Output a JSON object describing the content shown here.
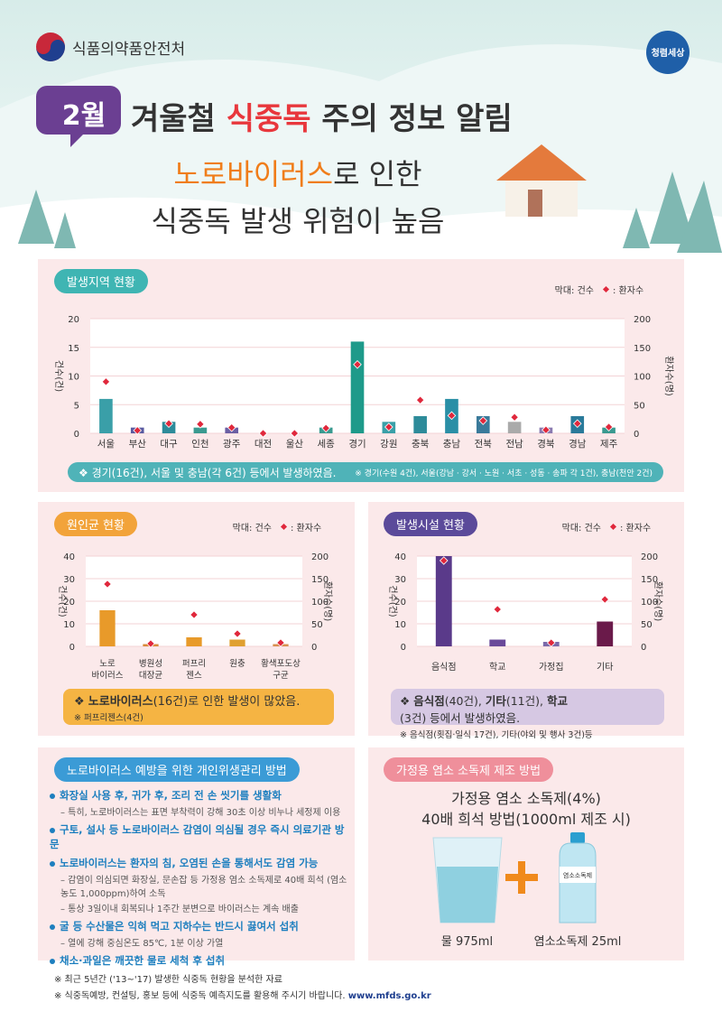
{
  "header": {
    "organization": "식품의약품안전처",
    "emblem_text": "청렴세상",
    "month": "2월",
    "title_parts": [
      "겨울철 ",
      "식중독",
      " 주의 정보 알림"
    ],
    "subtitle_parts": [
      "노로바이러스",
      "로 인한"
    ],
    "subtitle_line2": "식중독 발생 위험이 높음"
  },
  "chart_data": [
    {
      "type": "bar",
      "title": "발생지역 현황",
      "ylabel": "건수(건)",
      "y2label": "환자수(명)",
      "categories": [
        "서울",
        "부산",
        "대구",
        "인천",
        "광주",
        "대전",
        "울산",
        "세종",
        "경기",
        "강원",
        "충북",
        "충남",
        "전북",
        "전남",
        "경북",
        "경남",
        "제주"
      ],
      "series": [
        {
          "name": "막대: 건수",
          "values": [
            6,
            1,
            2,
            1,
            1,
            0,
            0,
            1,
            16,
            2,
            3,
            6,
            3,
            2,
            1,
            3,
            1
          ],
          "colors": [
            "#3a9fa8",
            "#5a5aa0",
            "#2d8b9a",
            "#3a9a90",
            "#6b5fa3",
            "#999999",
            "#999999",
            "#3a9a90",
            "#1e9a8a",
            "#3aa0a8",
            "#2d8b9a",
            "#2a8fa6",
            "#3a7a9a",
            "#aaaaaa",
            "#8a7ab0",
            "#2a7a9a",
            "#3a9a90"
          ]
        },
        {
          "name": ": 환자수",
          "type": "scatter",
          "axis": "y2",
          "color": "#e0283c",
          "values": [
            90,
            5,
            17,
            16,
            10,
            0,
            0,
            9,
            120,
            11,
            58,
            31,
            22,
            28,
            6,
            17,
            11
          ]
        }
      ],
      "ylim": [
        0,
        20
      ],
      "yticks": [
        0,
        5,
        10,
        15,
        20
      ],
      "y2lim": [
        0,
        200
      ],
      "y2ticks": [
        0,
        50,
        100,
        150,
        200
      ],
      "grid": true,
      "note_parts": [
        {
          "text": "❖ 경기(16건), 서울 및 충남(각 6건) 등에서 발생하였음."
        }
      ],
      "footnote": "※ 경기(수원 4건), 서울(강남 · 강서 · 노원 · 서초 · 성동 · 송파 각 1건), 충남(천안 2건)"
    },
    {
      "type": "bar",
      "title": "원인균 현황",
      "ylabel": "건수(건)",
      "y2label": "환자수(명)",
      "categories": [
        "노로\n바이러스",
        "병원성\n대장균",
        "퍼프리\n젠스",
        "원충",
        "황색포도상\n구균"
      ],
      "series": [
        {
          "name": "막대: 건수",
          "values": [
            16,
            1,
            4,
            3,
            1
          ],
          "colors": [
            "#e89a2a",
            "#d98a3a",
            "#e89a2a",
            "#e0a030",
            "#d89050"
          ]
        },
        {
          "name": ": 환자수",
          "type": "scatter",
          "axis": "y2",
          "color": "#e0283c",
          "values": [
            138,
            6,
            70,
            28,
            8
          ]
        }
      ],
      "ylim": [
        0,
        40
      ],
      "yticks": [
        0,
        10,
        20,
        30,
        40
      ],
      "y2lim": [
        0,
        200
      ],
      "y2ticks": [
        0,
        50,
        100,
        150,
        200
      ],
      "grid": true,
      "note_parts": [
        {
          "text": "❖ "
        },
        {
          "text": "노로바이러스",
          "bold": true
        },
        {
          "text": "(16건)로 인한 발생이 많았음."
        }
      ],
      "footnote": "※ 퍼프리젠스(4건)"
    },
    {
      "type": "bar",
      "title": "발생시설 현황",
      "ylabel": "건수(건)",
      "y2label": "환자수(명)",
      "categories": [
        "음식점",
        "학교",
        "가정집",
        "기타"
      ],
      "series": [
        {
          "name": "막대: 건수",
          "values": [
            40,
            3,
            2,
            11
          ],
          "colors": [
            "#5a3a8a",
            "#6a4a9a",
            "#7a6aaa",
            "#6a1a4a"
          ]
        },
        {
          "name": ": 환자수",
          "type": "scatter",
          "axis": "y2",
          "color": "#e0283c",
          "values": [
            190,
            82,
            8,
            104
          ]
        }
      ],
      "ylim": [
        0,
        40
      ],
      "yticks": [
        0,
        10,
        20,
        30,
        40
      ],
      "y2lim": [
        0,
        200
      ],
      "y2ticks": [
        0,
        50,
        100,
        150,
        200
      ],
      "grid": true,
      "note_parts": [
        {
          "text": "❖ "
        },
        {
          "text": "음식점",
          "bold": true
        },
        {
          "text": "(40건), "
        },
        {
          "text": "기타",
          "bold": true
        },
        {
          "text": "(11건), "
        },
        {
          "text": "학교",
          "bold": true
        },
        {
          "text": "(3건) 등에서 발생하였음."
        }
      ],
      "footnote": "※ 음식점(횟집·일식 17건), 기타(야외 및 행사 3건)등"
    }
  ],
  "hygiene": {
    "title": "노로바이러스 예방을 위한 개인위생관리 방법",
    "items": [
      {
        "text": "화장실 사용 후, 귀가 후, 조리 전 손 씻기를 생활화",
        "notes": [
          "– 특히, 노로바이러스는 표면 부착력이 강해 30초 이상 비누나 세정제 이용"
        ]
      },
      {
        "text": "구토, 설사 등 노로바이러스 감염이 의심될 경우 즉시 의료기관 방문",
        "notes": []
      },
      {
        "text": "노로바이러스는 환자의 침, 오염된 손을 통해서도 감염 가능",
        "notes": [
          "– 감염이 의심되면 화장실, 문손잡 등 가정용 염소 소독제로 40배 희석 (염소농도 1,000ppm)하여 소독",
          "– 통상 3일이내 회복되나 1주간 분변으로 바이러스는 계속 배출"
        ]
      },
      {
        "text": "굴 등 수산물은 익혀 먹고 지하수는 반드시 끓여서 섭취",
        "notes": [
          "– 열에 강해 중심온도 85℃, 1분 이상 가열"
        ]
      },
      {
        "text": "채소·과일은 깨끗한 물로 세척 후 섭취",
        "notes": []
      }
    ]
  },
  "bleach": {
    "title": "가정용 염소 소독제 제조 방법",
    "heading": [
      "가정용 염소 소독제(4%)",
      "40배 희석 방법(1000ml 제조 시)"
    ],
    "bottle_label": "염소소독제",
    "items": [
      "물 975ml",
      "염소소독제 25ml"
    ]
  },
  "footer": [
    {
      "text": "※ 최근 5년간 ('13~'17) 발생한 식중독 현황을 분석한 자료"
    },
    {
      "text": "※ 식중독예방, 컨설팅, 홍보 등에 식중독 예측지도를 활용해 주시기 바랍니다.",
      "url": "www.mfds.go.kr"
    }
  ]
}
